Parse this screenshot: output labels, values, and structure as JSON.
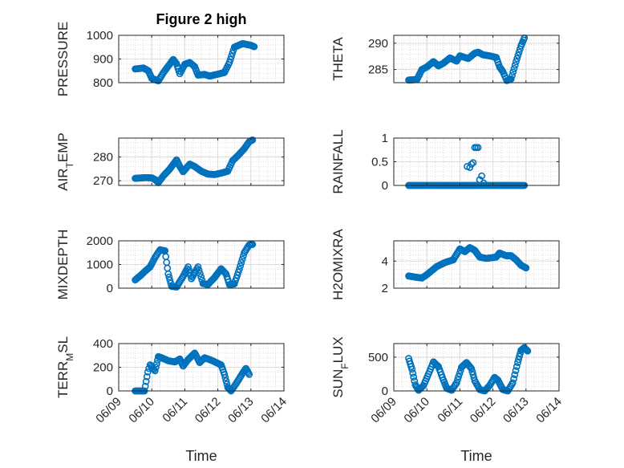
{
  "figure": {
    "title": "Figure 2 high",
    "xlabel": "Time",
    "marker_color": "#0072bd",
    "background": "#ffffff"
  },
  "chart_data": [
    {
      "type": "scatter",
      "ylabel": "PRESSURE",
      "xlim": [
        "06/09",
        "06/14"
      ],
      "ylim": [
        800,
        1000
      ],
      "yticks": [
        800,
        900,
        1000
      ],
      "xticks": [
        "06/09",
        "06/10",
        "06/11",
        "06/12",
        "06/13",
        "06/14"
      ],
      "show_xtick_labels": false,
      "grid": true,
      "keypoints": [
        [
          0.5,
          858
        ],
        [
          0.75,
          862
        ],
        [
          0.9,
          850
        ],
        [
          1.0,
          818
        ],
        [
          1.2,
          808
        ],
        [
          1.35,
          842
        ],
        [
          1.5,
          870
        ],
        [
          1.65,
          898
        ],
        [
          1.75,
          880
        ],
        [
          1.85,
          838
        ],
        [
          2.0,
          878
        ],
        [
          2.15,
          885
        ],
        [
          2.3,
          868
        ],
        [
          2.4,
          832
        ],
        [
          2.6,
          835
        ],
        [
          2.75,
          828
        ],
        [
          3.0,
          836
        ],
        [
          3.2,
          843
        ],
        [
          3.35,
          885
        ],
        [
          3.5,
          950
        ],
        [
          3.75,
          965
        ],
        [
          4.0,
          958
        ],
        [
          4.1,
          952
        ]
      ]
    },
    {
      "type": "scatter",
      "ylabel": "THETA",
      "xlim": [
        "06/09",
        "06/14"
      ],
      "ylim": [
        282.5,
        291.5
      ],
      "yticks": [
        285,
        290
      ],
      "xticks": [
        "06/09",
        "06/10",
        "06/11",
        "06/12",
        "06/13",
        "06/14"
      ],
      "show_xtick_labels": false,
      "grid": true,
      "keypoints": [
        [
          0.45,
          283
        ],
        [
          0.7,
          283.1
        ],
        [
          0.85,
          285
        ],
        [
          1.0,
          285.5
        ],
        [
          1.2,
          286.5
        ],
        [
          1.35,
          285.7
        ],
        [
          1.5,
          286.2
        ],
        [
          1.7,
          287.2
        ],
        [
          1.9,
          286.6
        ],
        [
          2.0,
          287.6
        ],
        [
          2.25,
          287.1
        ],
        [
          2.45,
          288.1
        ],
        [
          2.55,
          288.3
        ],
        [
          2.7,
          287.8
        ],
        [
          2.9,
          287.6
        ],
        [
          3.1,
          287.3
        ],
        [
          3.2,
          285.5
        ],
        [
          3.3,
          284.6
        ],
        [
          3.42,
          282.9
        ],
        [
          3.55,
          283.2
        ],
        [
          3.7,
          286.5
        ],
        [
          3.85,
          289.5
        ],
        [
          3.95,
          291
        ]
      ]
    },
    {
      "type": "scatter",
      "ylabel": "AIR_T_EMP",
      "xlim": [
        "06/09",
        "06/14"
      ],
      "ylim": [
        268,
        288
      ],
      "yticks": [
        270,
        280
      ],
      "xticks": [
        "06/09",
        "06/10",
        "06/11",
        "06/12",
        "06/13",
        "06/14"
      ],
      "show_xtick_labels": false,
      "grid": true,
      "keypoints": [
        [
          0.5,
          271
        ],
        [
          0.8,
          271.3
        ],
        [
          1.0,
          271.2
        ],
        [
          1.1,
          270.5
        ],
        [
          1.2,
          269.2
        ],
        [
          1.35,
          272
        ],
        [
          1.55,
          275
        ],
        [
          1.75,
          278.8
        ],
        [
          1.85,
          276
        ],
        [
          1.95,
          273.8
        ],
        [
          2.15,
          277
        ],
        [
          2.3,
          276
        ],
        [
          2.5,
          274
        ],
        [
          2.7,
          272.8
        ],
        [
          2.9,
          272.6
        ],
        [
          3.1,
          273.2
        ],
        [
          3.3,
          274
        ],
        [
          3.45,
          278.5
        ],
        [
          3.6,
          280.5
        ],
        [
          3.8,
          283.5
        ],
        [
          3.95,
          286.5
        ],
        [
          4.05,
          287.2
        ]
      ]
    },
    {
      "type": "scatter",
      "ylabel": "RAINFALL",
      "xlim": [
        "06/09",
        "06/14"
      ],
      "ylim": [
        0,
        1
      ],
      "yticks": [
        0,
        0.5,
        1
      ],
      "yticklabels": [
        "0",
        "0.5",
        "1"
      ],
      "xticks": [
        "06/09",
        "06/10",
        "06/11",
        "06/12",
        "06/13",
        "06/14"
      ],
      "show_xtick_labels": false,
      "grid": true,
      "keypoints": [
        [
          0.45,
          0
        ],
        [
          2.1,
          0
        ],
        [
          3.95,
          0
        ]
      ],
      "extra_points": [
        [
          2.22,
          0.4
        ],
        [
          2.3,
          0.38
        ],
        [
          2.35,
          0.45
        ],
        [
          2.4,
          0.48
        ],
        [
          2.45,
          0.8
        ],
        [
          2.5,
          0.8
        ],
        [
          2.55,
          0.8
        ],
        [
          2.6,
          0.12
        ],
        [
          2.66,
          0.2
        ],
        [
          2.72,
          0.05
        ]
      ]
    },
    {
      "type": "scatter",
      "ylabel": "MIXDEPTH",
      "xlim": [
        "06/09",
        "06/14"
      ],
      "ylim": [
        0,
        2000
      ],
      "yticks": [
        0,
        1000,
        2000
      ],
      "xticks": [
        "06/09",
        "06/10",
        "06/11",
        "06/12",
        "06/13",
        "06/14"
      ],
      "show_xtick_labels": false,
      "grid": true,
      "keypoints": [
        [
          0.5,
          350
        ],
        [
          0.65,
          520
        ],
        [
          0.8,
          720
        ],
        [
          0.95,
          900
        ],
        [
          1.1,
          1300
        ],
        [
          1.25,
          1620
        ],
        [
          1.4,
          1580
        ],
        [
          1.5,
          600
        ],
        [
          1.6,
          80
        ],
        [
          1.75,
          50
        ],
        [
          1.95,
          500
        ],
        [
          2.1,
          900
        ],
        [
          2.2,
          400
        ],
        [
          2.4,
          900
        ],
        [
          2.55,
          200
        ],
        [
          2.7,
          150
        ],
        [
          2.9,
          450
        ],
        [
          3.1,
          820
        ],
        [
          3.25,
          600
        ],
        [
          3.35,
          150
        ],
        [
          3.5,
          180
        ],
        [
          3.65,
          800
        ],
        [
          3.8,
          1500
        ],
        [
          3.95,
          1830
        ],
        [
          4.05,
          1850
        ]
      ]
    },
    {
      "type": "scatter",
      "ylabel": "H2OMIXRA",
      "xlim": [
        "06/09",
        "06/14"
      ],
      "ylim": [
        2,
        5.5
      ],
      "yticks": [
        2,
        4
      ],
      "xticks": [
        "06/09",
        "06/10",
        "06/11",
        "06/12",
        "06/13",
        "06/14"
      ],
      "show_xtick_labels": false,
      "grid": true,
      "keypoints": [
        [
          0.45,
          2.9
        ],
        [
          0.7,
          2.8
        ],
        [
          0.85,
          2.75
        ],
        [
          1.0,
          3.0
        ],
        [
          1.3,
          3.6
        ],
        [
          1.55,
          3.9
        ],
        [
          1.8,
          4.1
        ],
        [
          2.0,
          4.9
        ],
        [
          2.15,
          4.7
        ],
        [
          2.3,
          5.0
        ],
        [
          2.45,
          4.8
        ],
        [
          2.6,
          4.3
        ],
        [
          2.8,
          4.2
        ],
        [
          3.1,
          4.3
        ],
        [
          3.2,
          4.6
        ],
        [
          3.4,
          4.4
        ],
        [
          3.55,
          4.4
        ],
        [
          3.7,
          4.1
        ],
        [
          3.85,
          3.7
        ],
        [
          4.0,
          3.5
        ]
      ]
    },
    {
      "type": "scatter",
      "ylabel": "TERR_M_SL",
      "xlim": [
        "06/09",
        "06/14"
      ],
      "ylim": [
        0,
        400
      ],
      "yticks": [
        0,
        200,
        400
      ],
      "xticks": [
        "06/09",
        "06/10",
        "06/11",
        "06/12",
        "06/13",
        "06/14"
      ],
      "show_xtick_labels": true,
      "grid": true,
      "keypoints": [
        [
          0.5,
          0
        ],
        [
          0.78,
          0
        ],
        [
          0.88,
          160
        ],
        [
          0.95,
          220
        ],
        [
          1.1,
          170
        ],
        [
          1.2,
          290
        ],
        [
          1.3,
          280
        ],
        [
          1.5,
          255
        ],
        [
          1.7,
          245
        ],
        [
          1.85,
          270
        ],
        [
          1.95,
          210
        ],
        [
          2.1,
          265
        ],
        [
          2.3,
          320
        ],
        [
          2.45,
          240
        ],
        [
          2.6,
          280
        ],
        [
          2.8,
          260
        ],
        [
          2.95,
          240
        ],
        [
          3.1,
          220
        ],
        [
          3.2,
          140
        ],
        [
          3.3,
          30
        ],
        [
          3.4,
          0
        ],
        [
          3.55,
          60
        ],
        [
          3.75,
          150
        ],
        [
          3.85,
          190
        ],
        [
          3.95,
          140
        ]
      ]
    },
    {
      "type": "scatter",
      "ylabel": "SUN_F_LUX",
      "xlim": [
        "06/09",
        "06/14"
      ],
      "ylim": [
        0,
        700
      ],
      "yticks": [
        0,
        500
      ],
      "xticks": [
        "06/09",
        "06/10",
        "06/11",
        "06/12",
        "06/13",
        "06/14"
      ],
      "show_xtick_labels": true,
      "grid": true,
      "keypoints": [
        [
          0.45,
          480
        ],
        [
          0.55,
          320
        ],
        [
          0.65,
          90
        ],
        [
          0.75,
          10
        ],
        [
          0.9,
          80
        ],
        [
          1.05,
          250
        ],
        [
          1.2,
          430
        ],
        [
          1.35,
          360
        ],
        [
          1.5,
          160
        ],
        [
          1.6,
          40
        ],
        [
          1.75,
          10
        ],
        [
          1.9,
          120
        ],
        [
          2.05,
          350
        ],
        [
          2.2,
          420
        ],
        [
          2.35,
          330
        ],
        [
          2.45,
          150
        ],
        [
          2.6,
          20
        ],
        [
          2.75,
          0
        ],
        [
          2.9,
          80
        ],
        [
          3.05,
          200
        ],
        [
          3.15,
          160
        ],
        [
          3.3,
          20
        ],
        [
          3.45,
          0
        ],
        [
          3.6,
          120
        ],
        [
          3.75,
          420
        ],
        [
          3.85,
          600
        ],
        [
          3.95,
          640
        ],
        [
          4.05,
          590
        ]
      ]
    }
  ]
}
